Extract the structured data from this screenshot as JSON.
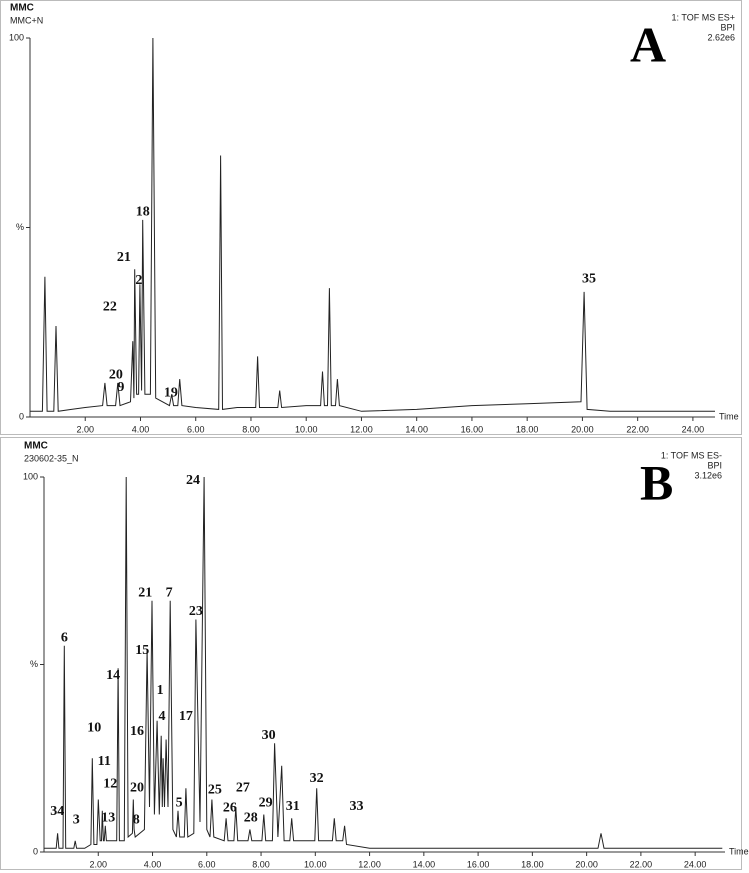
{
  "chart_data": [
    {
      "type": "line",
      "title": "MMC",
      "subtitle": "MMC+N",
      "panel_label": "A",
      "detector": [
        "1: TOF MS ES+",
        "BPI",
        "2.62e6"
      ],
      "x_label": "Time",
      "color": "#222222",
      "xlim": [
        0,
        24.8
      ],
      "ylim": [
        0,
        100
      ],
      "xticks": [
        {
          "value": 2,
          "label": "2.00"
        },
        {
          "value": 4,
          "label": "4.00"
        },
        {
          "value": 6,
          "label": "6.00"
        },
        {
          "value": 8,
          "label": "8.00"
        },
        {
          "value": 10,
          "label": "10.00"
        },
        {
          "value": 12,
          "label": "12.00"
        },
        {
          "value": 14,
          "label": "14.00"
        },
        {
          "value": 16,
          "label": "16.00"
        },
        {
          "value": 18,
          "label": "18.00"
        },
        {
          "value": 20,
          "label": "20.00"
        },
        {
          "value": 22,
          "label": "22.00"
        },
        {
          "value": 24,
          "label": "24.00"
        }
      ],
      "yticks": [
        0,
        {
          "value": 50,
          "label": "%"
        },
        100
      ],
      "x": [
        0,
        0.45,
        0.54,
        0.62,
        0.86,
        0.94,
        1.02,
        1.5,
        2.0,
        2.63,
        2.71,
        2.79,
        3.1,
        3.18,
        3.26,
        3.64,
        3.72,
        3.76,
        3.79,
        3.86,
        3.93,
        3.98,
        4.04,
        4.08,
        4.16,
        4.36,
        4.45,
        4.55,
        5.05,
        5.13,
        5.2,
        5.35,
        5.42,
        5.5,
        6.0,
        6.83,
        6.9,
        6.97,
        7.5,
        8.17,
        8.24,
        8.31,
        8.97,
        9.04,
        9.11,
        10.0,
        10.52,
        10.59,
        10.66,
        10.77,
        10.84,
        10.91,
        11.06,
        11.13,
        11.2,
        12,
        14,
        16,
        18,
        19.95,
        20.06,
        20.17,
        21,
        22,
        24,
        24.8
      ],
      "values": [
        1.5,
        1.5,
        37,
        1.5,
        1.5,
        24,
        1.5,
        2,
        2.5,
        3,
        9,
        3,
        3,
        9,
        3,
        4,
        20,
        5,
        39,
        6,
        6,
        35,
        7,
        52,
        6,
        6,
        100,
        5,
        3,
        6,
        3,
        3,
        10,
        3,
        2.5,
        2,
        69,
        2,
        2.5,
        2.5,
        16,
        2.5,
        2.5,
        7,
        2.5,
        3,
        3,
        12,
        3,
        3,
        34,
        3,
        3,
        10,
        3,
        1.5,
        2,
        3,
        3.5,
        4,
        33,
        2,
        1.5,
        1.5,
        1.5,
        1.5
      ],
      "annotations": [
        {
          "text": "18",
          "x": 4.08,
          "y": 54
        },
        {
          "text": "21",
          "x": 3.4,
          "y": 42
        },
        {
          "text": "2",
          "x": 3.94,
          "y": 36
        },
        {
          "text": "22",
          "x": 2.89,
          "y": 29
        },
        {
          "text": "20",
          "x": 3.11,
          "y": 11
        },
        {
          "text": "9",
          "x": 3.29,
          "y": 7.7
        },
        {
          "text": "19",
          "x": 5.1,
          "y": 6.3
        },
        {
          "text": "35",
          "x": 20.24,
          "y": 36.4
        }
      ]
    },
    {
      "type": "line",
      "title": "MMC",
      "subtitle": "230602-35_N",
      "panel_label": "B",
      "detector": [
        "1: TOF MS ES-",
        "BPI",
        "3.12e6"
      ],
      "x_label": "Time",
      "color": "#222222",
      "xlim": [
        0,
        25.1
      ],
      "ylim": [
        0,
        100
      ],
      "xticks": [
        {
          "value": 2,
          "label": "2.00"
        },
        {
          "value": 4,
          "label": "4.00"
        },
        {
          "value": 6,
          "label": "6.00"
        },
        {
          "value": 8,
          "label": "8.00"
        },
        {
          "value": 10,
          "label": "10.00"
        },
        {
          "value": 12,
          "label": "12.00"
        },
        {
          "value": 14,
          "label": "14.00"
        },
        {
          "value": 16,
          "label": "16.00"
        },
        {
          "value": 18,
          "label": "18.00"
        },
        {
          "value": 20,
          "label": "20.00"
        },
        {
          "value": 22,
          "label": "22.00"
        },
        {
          "value": 24,
          "label": "24.00"
        }
      ],
      "yticks": [
        0,
        {
          "value": 50,
          "label": "%"
        },
        100
      ],
      "x": [
        0,
        0.45,
        0.5,
        0.55,
        0.7,
        0.75,
        0.8,
        1.1,
        1.15,
        1.2,
        1.5,
        1.73,
        1.78,
        1.84,
        1.95,
        2.0,
        2.07,
        2.12,
        2.15,
        2.19,
        2.22,
        2.26,
        2.3,
        2.68,
        2.73,
        2.78,
        2.96,
        3.03,
        3.1,
        3.26,
        3.29,
        3.32,
        3.36,
        3.7,
        3.8,
        3.89,
        3.98,
        4.07,
        4.17,
        4.25,
        4.32,
        4.36,
        4.39,
        4.44,
        4.5,
        4.57,
        4.65,
        4.75,
        4.88,
        4.94,
        5.0,
        5.17,
        5.23,
        5.3,
        5.52,
        5.6,
        5.75,
        5.9,
        6.0,
        6.12,
        6.19,
        6.26,
        6.64,
        6.71,
        6.78,
        7.0,
        7.07,
        7.14,
        7.52,
        7.59,
        7.66,
        8.03,
        8.1,
        8.17,
        8.42,
        8.5,
        8.62,
        8.76,
        8.85,
        9.06,
        9.13,
        9.2,
        9.98,
        10.05,
        10.12,
        10.63,
        10.7,
        10.77,
        11.01,
        11.08,
        11.15,
        12,
        16,
        20.42,
        20.53,
        20.64,
        25
      ],
      "values": [
        1,
        1,
        5,
        1,
        1,
        55,
        1,
        1,
        3,
        1,
        1,
        2,
        25,
        2,
        2,
        14,
        3,
        3,
        11,
        3,
        3,
        7,
        3,
        3,
        49,
        3,
        3,
        100,
        4,
        5,
        14,
        6,
        4,
        6,
        54,
        12,
        67,
        10,
        35,
        10,
        31,
        12,
        25,
        12,
        30,
        12,
        67,
        6,
        4,
        11,
        4,
        4,
        17,
        4,
        5,
        62,
        8,
        100,
        6,
        4,
        14,
        4,
        3,
        9,
        3,
        3,
        12,
        3,
        3,
        6,
        3,
        3,
        10,
        3,
        3,
        29,
        4,
        23,
        3,
        3,
        9,
        3,
        3,
        17,
        3,
        3,
        9,
        3,
        3,
        7,
        2,
        1,
        1,
        1,
        5,
        1,
        1
      ],
      "annotations": [
        {
          "text": "34",
          "x": 0.49,
          "y": 10.7
        },
        {
          "text": "6",
          "x": 0.75,
          "y": 57
        },
        {
          "text": "3",
          "x": 1.19,
          "y": 8.5
        },
        {
          "text": "10",
          "x": 1.85,
          "y": 33
        },
        {
          "text": "11",
          "x": 2.22,
          "y": 24
        },
        {
          "text": "12",
          "x": 2.44,
          "y": 18
        },
        {
          "text": "13",
          "x": 2.37,
          "y": 9
        },
        {
          "text": "14",
          "x": 2.55,
          "y": 47
        },
        {
          "text": "20",
          "x": 3.43,
          "y": 17
        },
        {
          "text": "8",
          "x": 3.4,
          "y": 8.5
        },
        {
          "text": "15",
          "x": 3.62,
          "y": 53.6
        },
        {
          "text": "21",
          "x": 3.73,
          "y": 69
        },
        {
          "text": "1",
          "x": 4.28,
          "y": 43
        },
        {
          "text": "4",
          "x": 4.35,
          "y": 36
        },
        {
          "text": "16",
          "x": 3.43,
          "y": 32
        },
        {
          "text": "17",
          "x": 5.23,
          "y": 36
        },
        {
          "text": "7",
          "x": 4.61,
          "y": 69
        },
        {
          "text": "5",
          "x": 4.98,
          "y": 13
        },
        {
          "text": "23",
          "x": 5.6,
          "y": 64
        },
        {
          "text": "24",
          "x": 5.49,
          "y": 99
        },
        {
          "text": "25",
          "x": 6.3,
          "y": 16.5
        },
        {
          "text": "26",
          "x": 6.85,
          "y": 11.7
        },
        {
          "text": "27",
          "x": 7.33,
          "y": 17
        },
        {
          "text": "28",
          "x": 7.62,
          "y": 9
        },
        {
          "text": "29",
          "x": 8.17,
          "y": 13
        },
        {
          "text": "30",
          "x": 8.28,
          "y": 31
        },
        {
          "text": "31",
          "x": 9.17,
          "y": 12
        },
        {
          "text": "32",
          "x": 10.05,
          "y": 19.5
        },
        {
          "text": "33",
          "x": 11.52,
          "y": 12
        }
      ]
    }
  ]
}
